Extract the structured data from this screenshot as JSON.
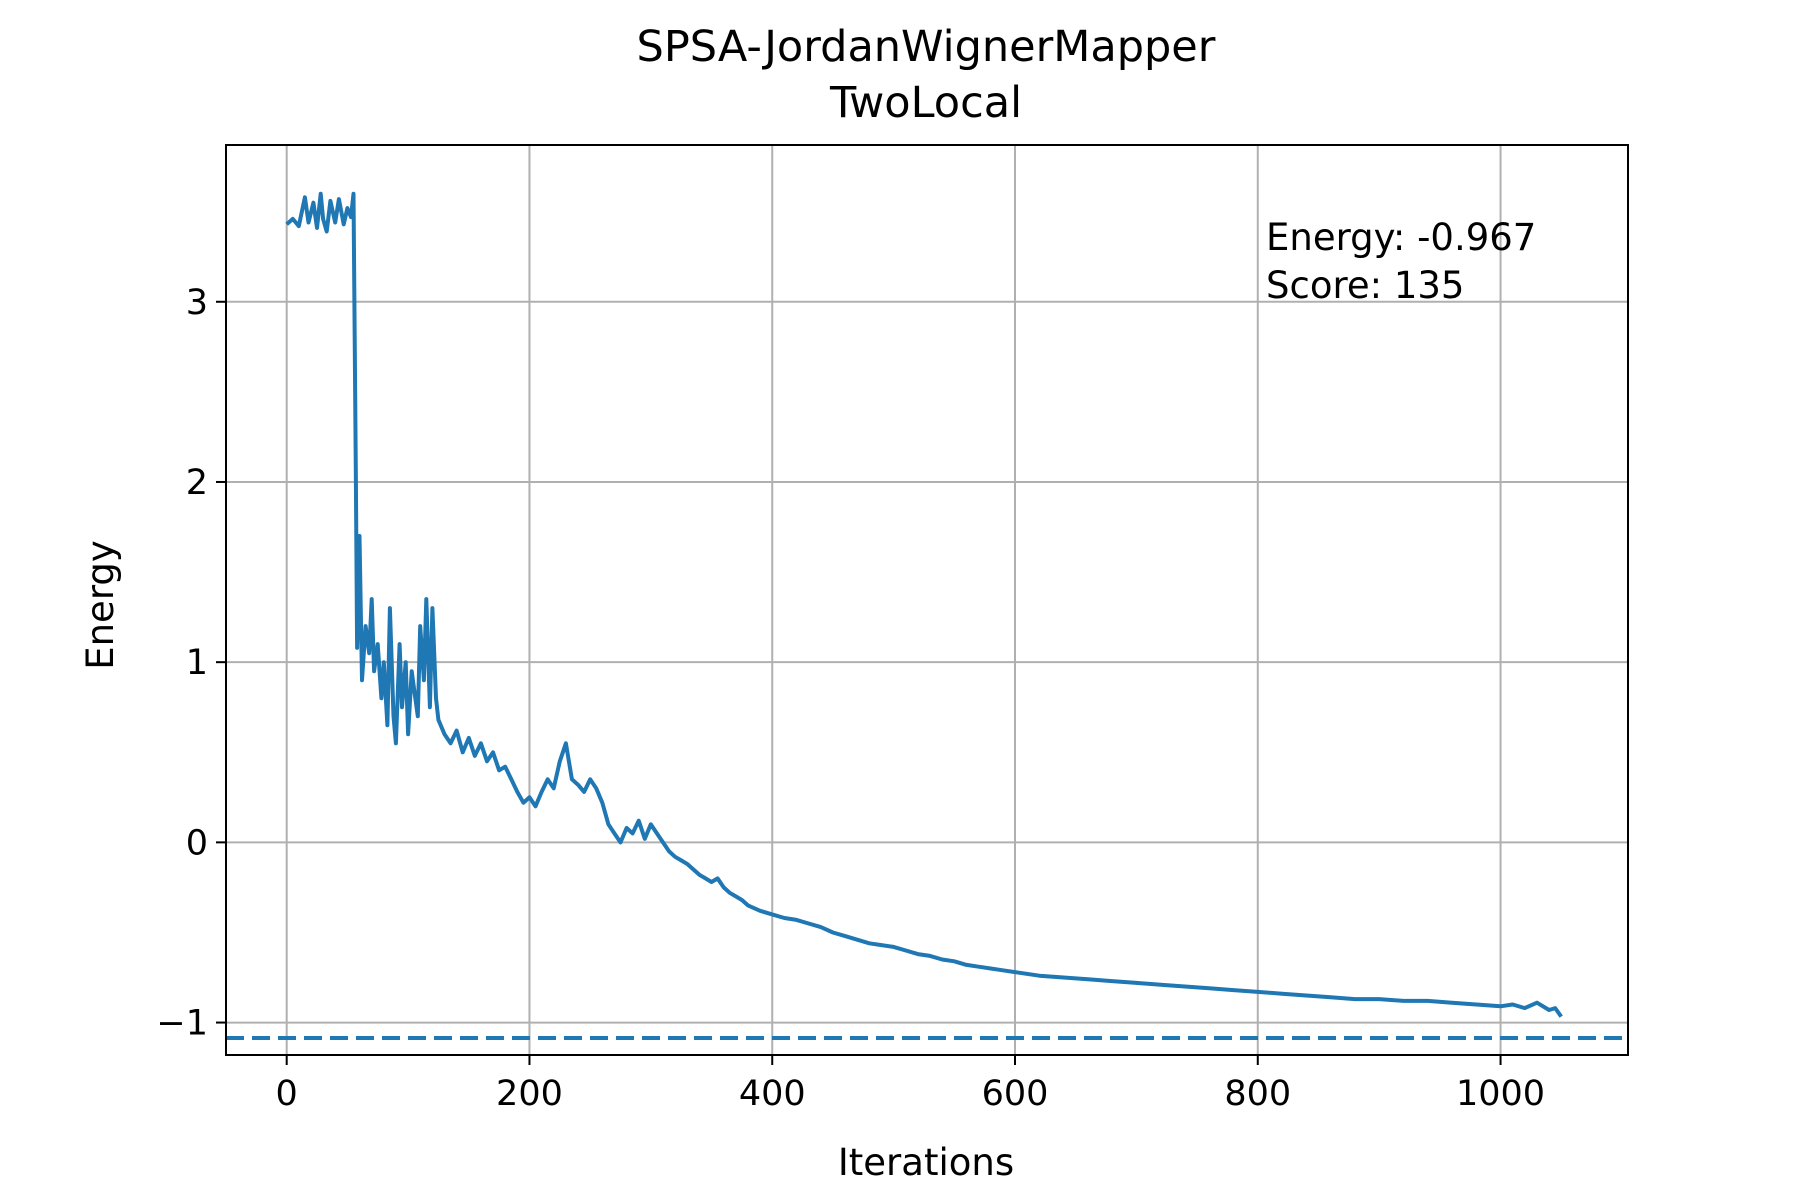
{
  "chart_data": {
    "type": "line",
    "title_line1": "SPSA-JordanWignerMapper",
    "title_line2": "TwoLocal",
    "xlabel": "Iterations",
    "ylabel": "Energy",
    "xlim": [
      -50,
      1105
    ],
    "ylim": [
      -1.18,
      3.87
    ],
    "xticks": [
      0,
      200,
      400,
      600,
      800,
      1000
    ],
    "xtick_labels": [
      "0",
      "200",
      "400",
      "600",
      "800",
      "1000"
    ],
    "yticks": [
      -1,
      0,
      1,
      2,
      3
    ],
    "ytick_labels": [
      "−1",
      "0",
      "1",
      "2",
      "3"
    ],
    "grid": true,
    "annotation_energy": "Energy: -0.967",
    "annotation_score": "Score: 135",
    "reference_line": {
      "y": -1.086,
      "style": "dashed"
    },
    "series_color": "#1f77b4",
    "series": [
      {
        "x": [
          0,
          5,
          10,
          15,
          18,
          22,
          25,
          28,
          30,
          33,
          36,
          40,
          43,
          47,
          50,
          53,
          55,
          57,
          58,
          60,
          62,
          65,
          68,
          70,
          72,
          75,
          78,
          80,
          83,
          85,
          88,
          90,
          93,
          95,
          98,
          100,
          103,
          105,
          108,
          110,
          113,
          115,
          118,
          120,
          123,
          125,
          130,
          135,
          140,
          145,
          150,
          155,
          160,
          165,
          170,
          175,
          180,
          185,
          190,
          195,
          200,
          205,
          210,
          215,
          220,
          225,
          230,
          235,
          240,
          245,
          250,
          255,
          260,
          265,
          270,
          275,
          280,
          285,
          290,
          295,
          300,
          305,
          310,
          315,
          320,
          325,
          330,
          335,
          340,
          345,
          350,
          355,
          360,
          365,
          370,
          375,
          380,
          390,
          400,
          410,
          420,
          430,
          440,
          450,
          460,
          470,
          480,
          490,
          500,
          510,
          520,
          530,
          540,
          550,
          560,
          570,
          580,
          590,
          600,
          620,
          640,
          660,
          680,
          700,
          720,
          740,
          760,
          780,
          800,
          820,
          840,
          860,
          880,
          900,
          920,
          940,
          960,
          980,
          1000,
          1010,
          1020,
          1030,
          1040,
          1045,
          1050
        ],
        "y": [
          3.43,
          3.46,
          3.42,
          3.58,
          3.44,
          3.55,
          3.41,
          3.6,
          3.46,
          3.39,
          3.56,
          3.44,
          3.57,
          3.43,
          3.52,
          3.47,
          3.6,
          2.0,
          1.08,
          1.7,
          0.9,
          1.2,
          1.05,
          1.35,
          0.95,
          1.1,
          0.8,
          1.0,
          0.65,
          1.3,
          0.7,
          0.55,
          1.1,
          0.75,
          1.0,
          0.6,
          0.95,
          0.85,
          0.7,
          1.2,
          0.9,
          1.35,
          0.75,
          1.3,
          0.8,
          0.68,
          0.6,
          0.55,
          0.62,
          0.5,
          0.58,
          0.48,
          0.55,
          0.45,
          0.5,
          0.4,
          0.42,
          0.35,
          0.28,
          0.22,
          0.25,
          0.2,
          0.28,
          0.35,
          0.3,
          0.45,
          0.55,
          0.35,
          0.32,
          0.28,
          0.35,
          0.3,
          0.22,
          0.1,
          0.05,
          0.0,
          0.08,
          0.05,
          0.12,
          0.02,
          0.1,
          0.05,
          0.0,
          -0.05,
          -0.08,
          -0.1,
          -0.12,
          -0.15,
          -0.18,
          -0.2,
          -0.22,
          -0.2,
          -0.25,
          -0.28,
          -0.3,
          -0.32,
          -0.35,
          -0.38,
          -0.4,
          -0.42,
          -0.43,
          -0.45,
          -0.47,
          -0.5,
          -0.52,
          -0.54,
          -0.56,
          -0.57,
          -0.58,
          -0.6,
          -0.62,
          -0.63,
          -0.65,
          -0.66,
          -0.68,
          -0.69,
          -0.7,
          -0.71,
          -0.72,
          -0.74,
          -0.75,
          -0.76,
          -0.77,
          -0.78,
          -0.79,
          -0.8,
          -0.81,
          -0.82,
          -0.83,
          -0.84,
          -0.85,
          -0.86,
          -0.87,
          -0.87,
          -0.88,
          -0.88,
          -0.89,
          -0.9,
          -0.91,
          -0.9,
          -0.92,
          -0.89,
          -0.93,
          -0.92,
          -0.967
        ]
      }
    ]
  }
}
